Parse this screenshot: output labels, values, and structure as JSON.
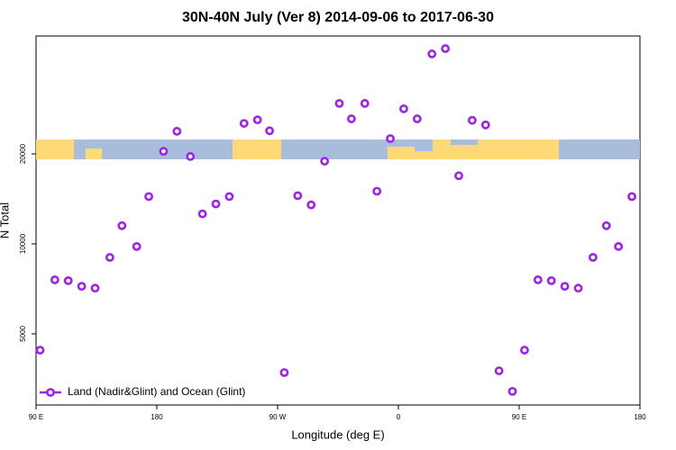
{
  "chart_data": {
    "type": "scatter",
    "title": "30N-40N July (Ver 8)   2014-09-06 to 2017-06-30",
    "x_label": "Longitude (deg E)",
    "y_label": "N Total",
    "xlim": [
      90,
      540
    ],
    "ylim": [
      2890,
      49600
    ],
    "ylog": true,
    "xticks": [
      {
        "value": 90,
        "label": "90 E"
      },
      180,
      {
        "value": 270,
        "label": "90 W"
      },
      {
        "value": 360,
        "label": "0"
      },
      {
        "value": 450,
        "label": "90 E"
      },
      {
        "value": 540,
        "label": "180"
      }
    ],
    "yticks": [
      5000,
      10000,
      20000
    ],
    "legend": "bottom-left",
    "series": [
      {
        "name": "Land (Nadir&Glint) and Ocean (Glint)",
        "color": "#a020f0",
        "x": [
          93,
          104,
          114,
          124,
          134,
          145,
          154,
          165,
          174,
          185,
          195,
          205,
          214,
          224,
          234,
          245,
          255,
          264,
          275,
          285,
          295,
          305,
          316,
          325,
          335,
          344,
          354,
          364,
          374,
          385,
          395,
          405,
          415,
          425,
          435,
          445,
          454,
          464,
          474,
          484,
          494,
          505,
          515,
          524,
          534
        ],
        "values": [
          4410,
          7580,
          7530,
          7210,
          7110,
          9010,
          11500,
          9800,
          14400,
          20400,
          23800,
          19600,
          12600,
          13600,
          14400,
          25300,
          26000,
          23900,
          3710,
          14500,
          13500,
          18900,
          29500,
          26200,
          29500,
          15000,
          22500,
          28300,
          26200,
          43200,
          45000,
          16900,
          25900,
          25000,
          3760,
          3210,
          4410,
          7580,
          7530,
          7210,
          7110,
          9010,
          11500,
          9800,
          14400
        ]
      }
    ]
  }
}
